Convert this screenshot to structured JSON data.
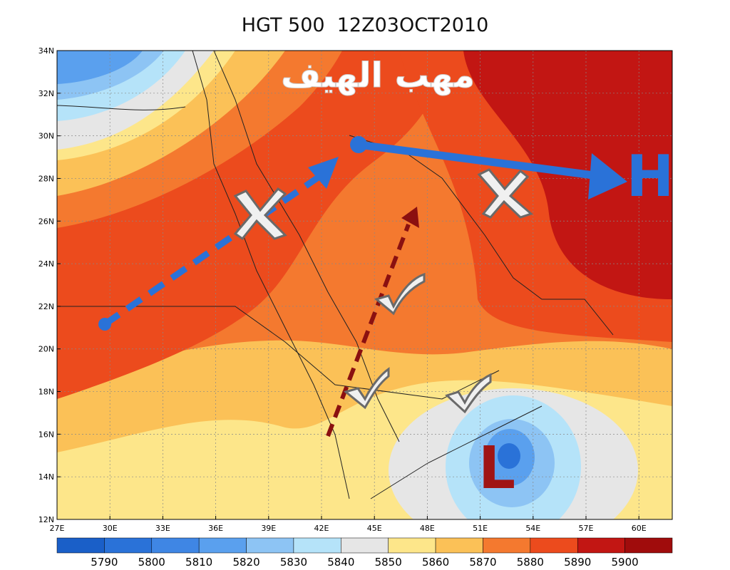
{
  "title": "HGT 500  12Z03OCT2010",
  "overlay_text": "مهب الهيف",
  "markers": {
    "high": "H",
    "low": "L"
  },
  "lat_labels": [
    "34N",
    "32N",
    "30N",
    "28N",
    "26N",
    "24N",
    "22N",
    "20N",
    "18N",
    "16N",
    "14N",
    "12N"
  ],
  "lon_labels": [
    "27E",
    "30E",
    "33E",
    "36E",
    "39E",
    "42E",
    "45E",
    "48E",
    "51E",
    "54E",
    "57E",
    "60E"
  ],
  "legend": {
    "labels": [
      5790,
      5800,
      5810,
      5820,
      5830,
      5840,
      5850,
      5860,
      5870,
      5880,
      5890,
      5900
    ]
  }
}
